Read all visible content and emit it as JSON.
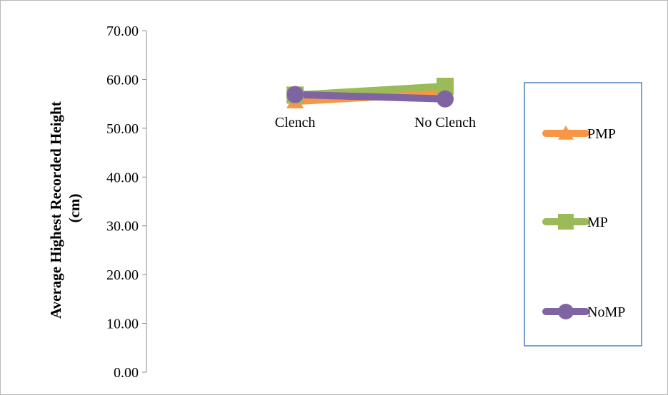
{
  "chart_data": {
    "type": "line",
    "title": "",
    "xlabel": "",
    "ylabel": "Average Highest Recorded Height (cm)",
    "ylabel_lines": [
      "Average Highest Recorded Height",
      "(cm)"
    ],
    "categories": [
      "Clench",
      "No Clench"
    ],
    "ylim": [
      0,
      70
    ],
    "yticks": [
      0,
      10,
      20,
      30,
      40,
      50,
      60,
      70
    ],
    "ytick_labels": [
      "0.00",
      "10.00",
      "20.00",
      "30.00",
      "40.00",
      "50.00",
      "60.00",
      "70.00"
    ],
    "grid": false,
    "legend_position": "right",
    "series": [
      {
        "name": "PMP",
        "values": [
          55.5,
          57.2
        ],
        "color": "#f79646",
        "marker": "triangle"
      },
      {
        "name": "MP",
        "values": [
          56.8,
          58.6
        ],
        "color": "#9bbb59",
        "marker": "square"
      },
      {
        "name": "NoMP",
        "values": [
          56.9,
          56.0
        ],
        "color": "#8064a2",
        "marker": "circle"
      }
    ],
    "colors": {
      "axis": "#8c8c8c",
      "legend_border": "#4f81bd"
    }
  }
}
